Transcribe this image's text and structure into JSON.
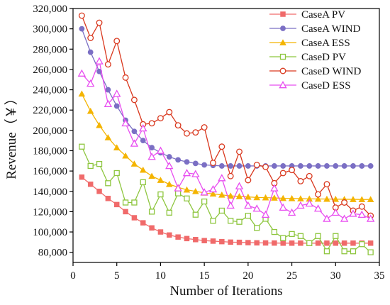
{
  "chart_data": {
    "type": "line",
    "xlabel": "Number of Iterations",
    "ylabel": "Revenue（￥）",
    "xlim": [
      0,
      35
    ],
    "ylim": [
      70000,
      320000
    ],
    "xticks": [
      0,
      5,
      10,
      15,
      20,
      25,
      30,
      35
    ],
    "yticks": [
      80000,
      100000,
      120000,
      140000,
      160000,
      180000,
      200000,
      220000,
      240000,
      260000,
      280000,
      300000,
      320000
    ],
    "xtick_labels": [
      "0",
      "5",
      "10",
      "15",
      "20",
      "25",
      "30",
      "35"
    ],
    "ytick_labels": [
      "80,000",
      "100,000",
      "120,000",
      "140,000",
      "160,000",
      "180,000",
      "200,000",
      "220,000",
      "240,000",
      "260,000",
      "280,000",
      "300,000",
      "320,000"
    ],
    "grid": false,
    "legend_position": "top-right",
    "x": [
      1,
      2,
      3,
      4,
      5,
      6,
      7,
      8,
      9,
      10,
      11,
      12,
      13,
      14,
      15,
      16,
      17,
      18,
      19,
      20,
      21,
      22,
      23,
      24,
      25,
      26,
      27,
      28,
      29,
      30,
      31,
      32,
      33,
      34
    ],
    "series": [
      {
        "name": "CaseA PV",
        "color": "#f06a6a",
        "marker": "square-filled",
        "values": [
          154000,
          147000,
          140000,
          133000,
          127000,
          120000,
          114000,
          109000,
          104000,
          100000,
          97000,
          95000,
          93500,
          92500,
          91500,
          91000,
          90500,
          90000,
          89800,
          89500,
          89300,
          89200,
          89100,
          89000,
          89000,
          89000,
          89000,
          89000,
          89000,
          89000,
          89000,
          89000,
          89000,
          89000
        ]
      },
      {
        "name": "CaseA WIND",
        "color": "#7b6fc4",
        "marker": "circle-filled",
        "values": [
          300000,
          277000,
          258000,
          240000,
          224000,
          210000,
          199000,
          190000,
          183000,
          178000,
          174000,
          171000,
          169000,
          167500,
          166000,
          165500,
          165000,
          165000,
          165000,
          165000,
          165000,
          165000,
          165000,
          165000,
          165000,
          165000,
          165000,
          165000,
          165000,
          165000,
          165000,
          165000,
          165000,
          165000
        ]
      },
      {
        "name": "CaseA ESS",
        "color": "#f4b400",
        "marker": "triangle-filled",
        "values": [
          236000,
          219000,
          205000,
          193000,
          183000,
          175000,
          167000,
          161000,
          155000,
          151000,
          147000,
          144000,
          141500,
          140000,
          138500,
          137500,
          136500,
          135500,
          135000,
          134500,
          134000,
          133800,
          133500,
          133200,
          133000,
          132800,
          132600,
          132500,
          132400,
          132300,
          132200,
          132100,
          132000,
          132000
        ]
      },
      {
        "name": "CaseD PV",
        "color": "#8ec63f",
        "marker": "square-open",
        "values": [
          184000,
          165000,
          167000,
          148000,
          158000,
          129000,
          129000,
          149000,
          120000,
          137000,
          119000,
          138000,
          133000,
          117000,
          130000,
          111000,
          121000,
          111000,
          110000,
          116000,
          104000,
          113000,
          100000,
          94000,
          98000,
          96000,
          89000,
          96000,
          81000,
          96000,
          81000,
          81000,
          88000,
          80000
        ]
      },
      {
        "name": "CaseD WIND",
        "color": "#d9381e",
        "marker": "circle-open",
        "values": [
          313000,
          291000,
          306000,
          265000,
          288000,
          252000,
          230000,
          206000,
          207000,
          212000,
          218000,
          205000,
          197000,
          198000,
          203000,
          168000,
          184000,
          155000,
          179000,
          151000,
          166000,
          164000,
          148000,
          158000,
          161000,
          150000,
          155000,
          137000,
          147000,
          124000,
          129000,
          121000,
          125000,
          116000
        ]
      },
      {
        "name": "CaseD ESS",
        "color": "#e84ef0",
        "marker": "triangle-open",
        "values": [
          256000,
          246000,
          268000,
          226000,
          236000,
          207000,
          187000,
          202000,
          174000,
          180000,
          165000,
          143000,
          158000,
          157000,
          139000,
          142000,
          153000,
          126000,
          145000,
          126000,
          123000,
          117000,
          143000,
          124000,
          119000,
          126000,
          128000,
          123000,
          113000,
          119000,
          113000,
          118000,
          117000,
          113000
        ]
      }
    ]
  }
}
